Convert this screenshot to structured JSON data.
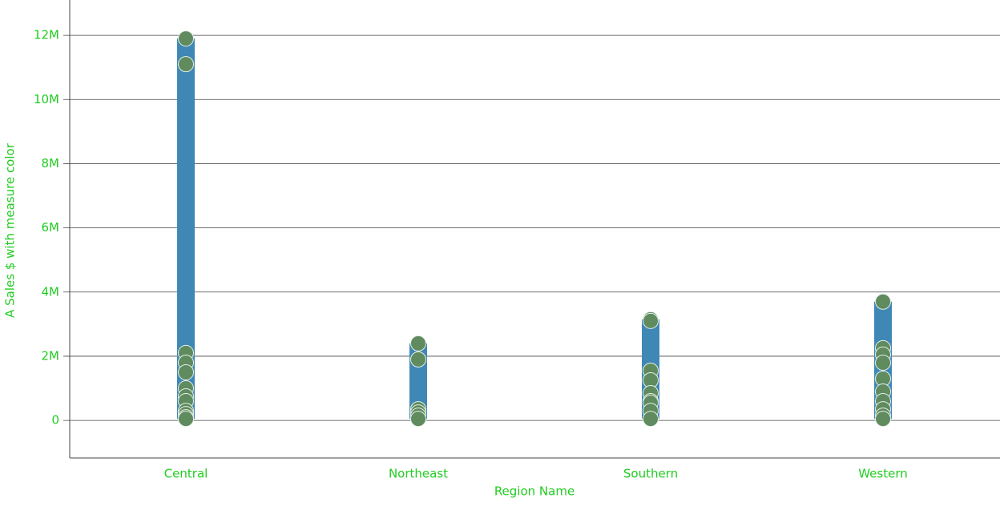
{
  "chart_data": {
    "type": "dotrange",
    "x_label": "Region Name",
    "y_label": "A Sales $  with measure color",
    "categories": [
      "Central",
      "Northeast",
      "Southern",
      "Western"
    ],
    "values": [
      [
        11900000,
        11100000,
        2100000,
        1800000,
        1500000,
        1000000,
        750000,
        600000,
        300000,
        200000,
        100000,
        50000
      ],
      [
        2400000,
        1900000,
        350000,
        250000,
        150000,
        50000
      ],
      [
        3150000,
        3100000,
        1550000,
        1250000,
        850000,
        600000,
        550000,
        300000,
        50000
      ],
      [
        3700000,
        2250000,
        2050000,
        1800000,
        1300000,
        900000,
        600000,
        350000,
        150000,
        50000
      ]
    ],
    "bar_color": "#3f88b5",
    "point_color": "#5f8b5f",
    "ylim": [
      -1170000,
      13100000
    ],
    "yticks": [
      0,
      {
        "value": 2000000,
        "label": "2M"
      },
      {
        "value": 4000000,
        "label": "4M"
      },
      {
        "value": 6000000,
        "label": "6M"
      },
      {
        "value": 8000000,
        "label": "8M"
      },
      {
        "value": 10000000,
        "label": "10M"
      },
      {
        "value": 12000000,
        "label": "12M"
      }
    ],
    "grid": true
  }
}
